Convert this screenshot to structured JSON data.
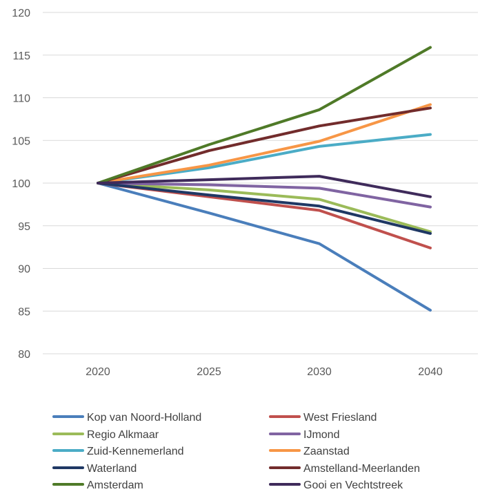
{
  "chart_data": {
    "type": "line",
    "title": "",
    "xlabel": "",
    "ylabel": "",
    "categories": [
      "2020",
      "2025",
      "2030",
      "2040"
    ],
    "ylim": [
      80,
      120
    ],
    "yticks": [
      80,
      85,
      90,
      95,
      100,
      105,
      110,
      115,
      120
    ],
    "grid": true,
    "legend_position": "bottom",
    "series": [
      {
        "name": "Kop van Noord-Holland",
        "color": "#4a7ebb",
        "values": [
          100,
          96.5,
          92.9,
          85.1
        ]
      },
      {
        "name": "West Friesland",
        "color": "#c0504d",
        "values": [
          100,
          98.4,
          96.8,
          92.4
        ]
      },
      {
        "name": "Regio Alkmaar",
        "color": "#9bbb59",
        "values": [
          100,
          99.2,
          98.1,
          94.3
        ]
      },
      {
        "name": "IJmond",
        "color": "#8064a2",
        "values": [
          100,
          99.8,
          99.4,
          97.2
        ]
      },
      {
        "name": "Zuid-Kennemerland",
        "color": "#4bacc6",
        "values": [
          100,
          101.8,
          104.3,
          105.7
        ]
      },
      {
        "name": "Zaanstad",
        "color": "#f79646",
        "values": [
          100,
          102.1,
          104.9,
          109.2
        ]
      },
      {
        "name": "Waterland",
        "color": "#1f3864",
        "values": [
          100,
          98.6,
          97.3,
          94.1
        ]
      },
      {
        "name": "Amstelland-Meerlanden",
        "color": "#722c2c",
        "values": [
          100,
          103.8,
          106.7,
          108.8
        ]
      },
      {
        "name": "Amsterdam",
        "color": "#4f7a28",
        "values": [
          100,
          104.5,
          108.6,
          115.9
        ]
      },
      {
        "name": "Gooi en Vechtstreek",
        "color": "#3f2b5b",
        "values": [
          100,
          100.4,
          100.8,
          98.4
        ]
      }
    ]
  }
}
